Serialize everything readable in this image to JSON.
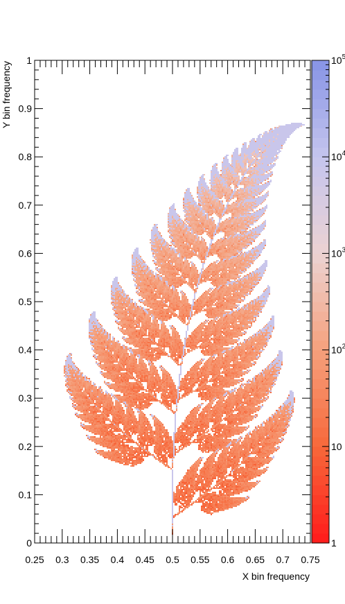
{
  "chart_data": {
    "type": "heatmap",
    "title": "",
    "xlabel": "X bin frequency",
    "ylabel": "Y bin frequency",
    "xlim": [
      0.25,
      0.75
    ],
    "ylim": [
      0,
      1
    ],
    "x_ticks": [
      "0.25",
      "0.3",
      "0.35",
      "0.4",
      "0.45",
      "0.5",
      "0.55",
      "0.6",
      "0.65",
      "0.7",
      "0.75"
    ],
    "y_ticks": [
      "0",
      "0.1",
      "0.2",
      "0.3",
      "0.4",
      "0.5",
      "0.6",
      "0.7",
      "0.8",
      "0.9",
      "1"
    ],
    "z_scale": "log",
    "zlim": [
      1,
      100000
    ],
    "z_ticks": [
      {
        "base": "1",
        "exp": ""
      },
      {
        "base": "10",
        "exp": ""
      },
      {
        "base": "10",
        "exp": "2"
      },
      {
        "base": "10",
        "exp": "3"
      },
      {
        "base": "10",
        "exp": "4"
      },
      {
        "base": "10",
        "exp": "5"
      }
    ],
    "colormap": [
      "#ff1a1a",
      "#f7683a",
      "#f5a07c",
      "#ecd2d2",
      "#c5c5ee",
      "#8794e6"
    ],
    "shape": "Barnsley fern",
    "grid": false,
    "legend": "color bar right"
  }
}
